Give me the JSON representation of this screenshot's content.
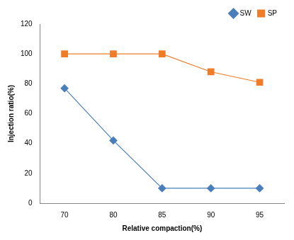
{
  "chart_data": {
    "type": "line",
    "x_label": "Relative compaction(%)",
    "y_label": "Injection ratio(%)",
    "categories": [
      "70",
      "80",
      "85",
      "90",
      "95"
    ],
    "series": [
      {
        "name": "SW",
        "color": "#4a7ebb",
        "marker": "diamond",
        "values": [
          77,
          42,
          10,
          10,
          10
        ]
      },
      {
        "name": "SP",
        "color": "#f07c28",
        "marker": "square",
        "values": [
          100,
          100,
          100,
          88,
          81
        ]
      }
    ],
    "ylim": [
      0,
      120
    ],
    "yticks": [
      0,
      20,
      40,
      60,
      80,
      100,
      120
    ],
    "grid": false,
    "legend": "top-right"
  }
}
